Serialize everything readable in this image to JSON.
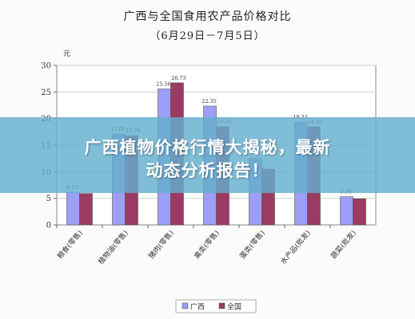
{
  "chart_data": {
    "type": "bar",
    "title": "广西与全国食用农产品价格对比",
    "subtitle": "（6月29日－7月5日）",
    "ylabel": "元",
    "ylim": [
      0,
      30
    ],
    "yticks": [
      0,
      5,
      10,
      15,
      20,
      25,
      30
    ],
    "grid": true,
    "legend_position": "bottom",
    "categories": [
      "粮食(零售)",
      "植物油(零售)",
      "猪肉(零售)",
      "禽类(零售)",
      "蛋类(零售)",
      "水产品(批发)",
      "蔬菜(批发)"
    ],
    "series": [
      {
        "name": "广西",
        "color": "#9d9ef5",
        "values": [
          6.13,
          17.08,
          25.56,
          22.35,
          12.5,
          19.33,
          5.3
        ]
      },
      {
        "name": "全国",
        "color": "#9b3b63",
        "values": [
          5.9,
          16.78,
          26.73,
          18.5,
          10.5,
          18.45,
          4.9
        ]
      }
    ],
    "data_labels": [
      [
        "6.13",
        "17.08",
        "25.56",
        "22.35",
        "",
        "19.33",
        "5.30"
      ],
      [
        "",
        "16.78",
        "26.73",
        "18.50",
        "",
        "18.45",
        ""
      ]
    ]
  },
  "banner": {
    "line1": "广西植物价格行情大揭秘，最新",
    "line2": "动态分析报告！"
  }
}
